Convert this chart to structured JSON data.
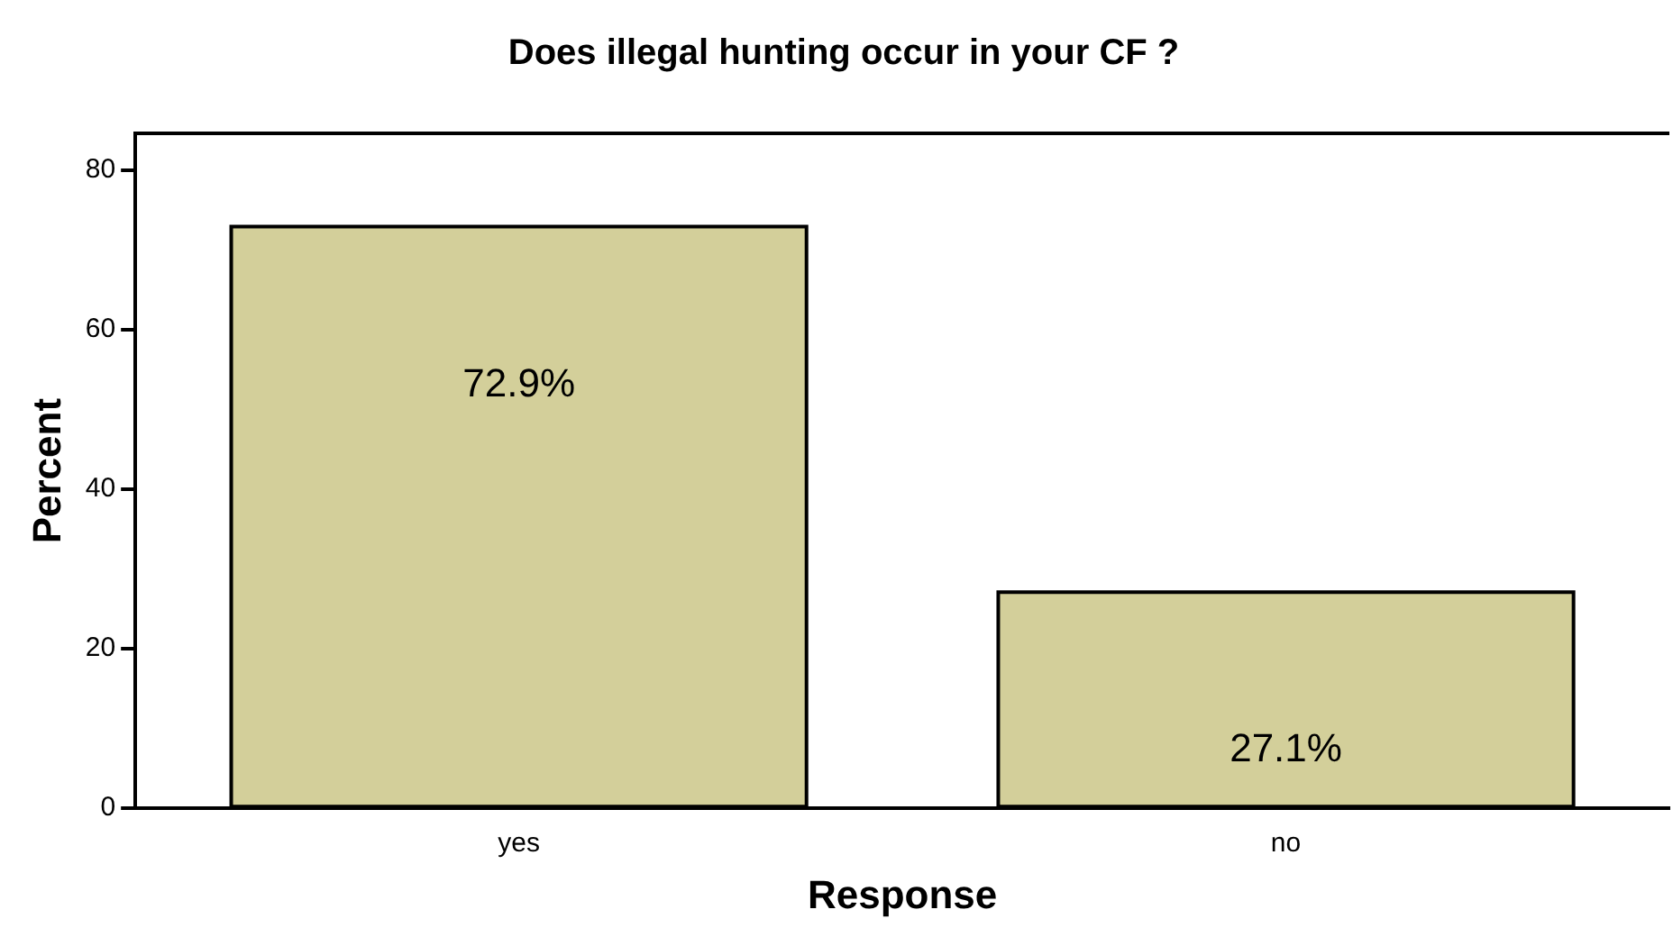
{
  "chart_data": {
    "type": "bar",
    "title": "Does illegal hunting occur in your CF ?",
    "xlabel": "Response",
    "ylabel": "Percent",
    "categories": [
      "yes",
      "no"
    ],
    "values": [
      72.9,
      27.1
    ],
    "value_labels": [
      "72.9%",
      "27.1%"
    ],
    "color": "#d3cf9a",
    "ylim": [
      0,
      84.6
    ],
    "yticks": [
      0,
      20,
      40,
      60,
      80
    ],
    "grid": false,
    "legend": false
  }
}
